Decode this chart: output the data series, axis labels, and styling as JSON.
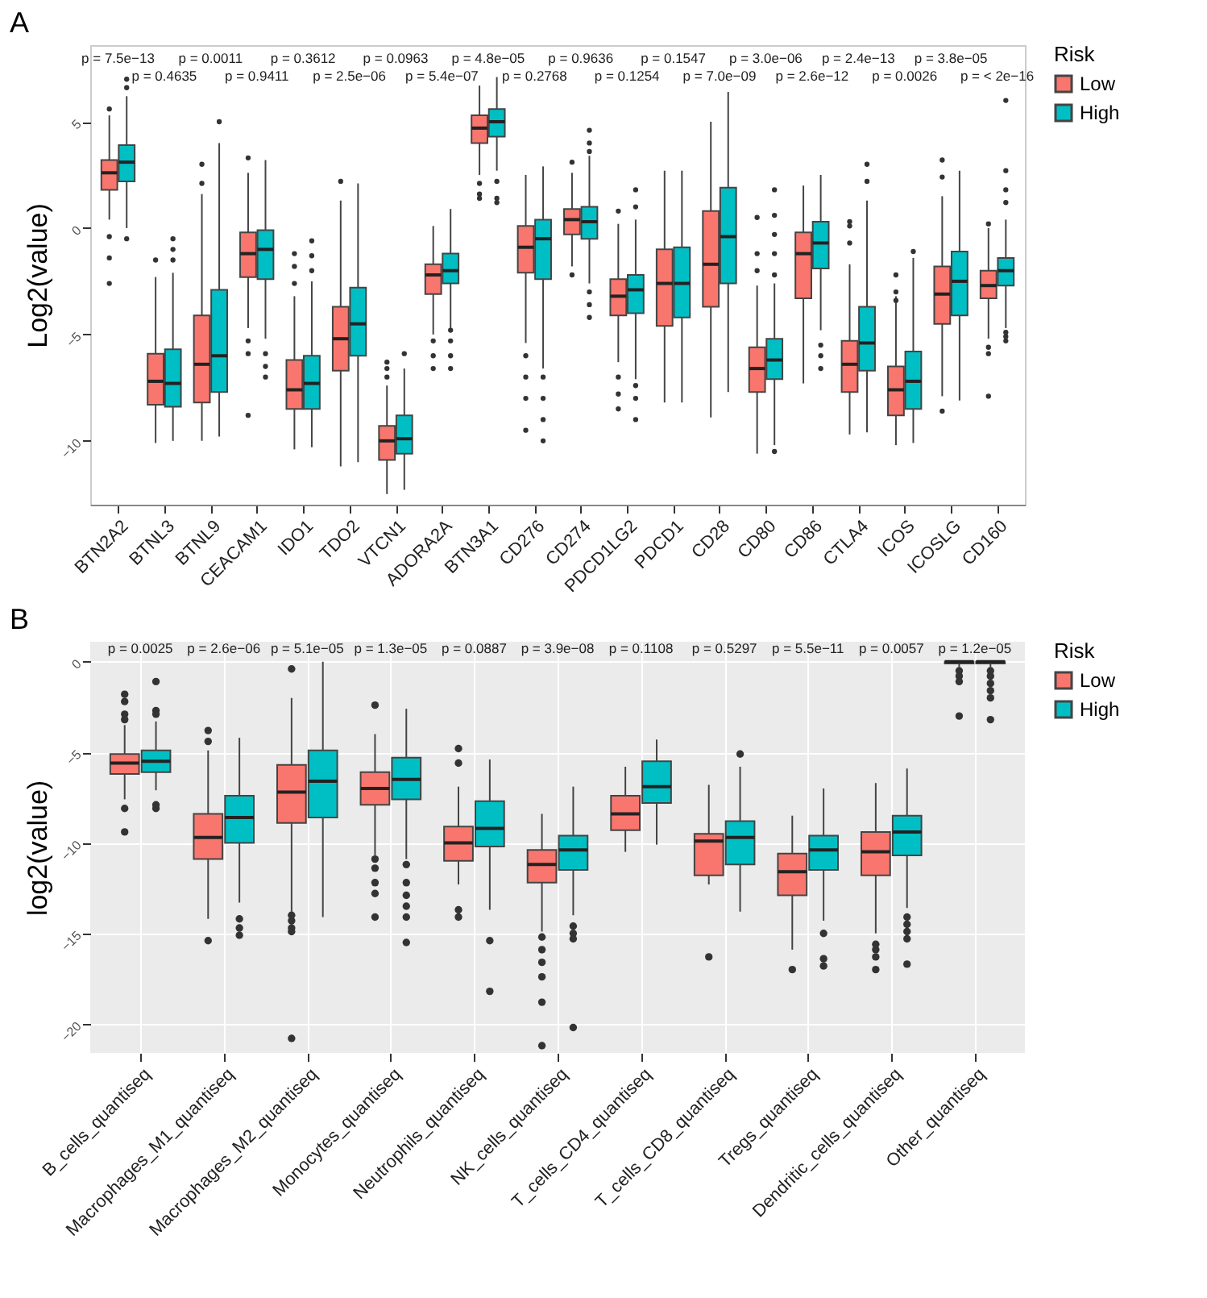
{
  "chart_data": [
    {
      "type": "box",
      "title": "A",
      "ylabel": "Log2(value)",
      "legend_title": "Risk",
      "legend": "right",
      "ylim": [
        -13,
        8.6
      ],
      "yticks": [
        5,
        0,
        -5,
        -10
      ],
      "categories": [
        "BTN2A2",
        "BTNL3",
        "BTNL9",
        "CEACAM1",
        "IDO1",
        "TDO2",
        "VTCN1",
        "ADORA2A",
        "BTN3A1",
        "CD276",
        "CD274",
        "PDCD1LG2",
        "PDCD1",
        "CD28",
        "CD80",
        "CD86",
        "CTLA4",
        "ICOS",
        "ICOSLG",
        "CD160"
      ],
      "annotations": [
        "p = 7.5e−13",
        "p = 0.4635",
        "p = 0.0011",
        "p = 0.9411",
        "p = 0.3612",
        "p = 2.5e−06",
        "p = 0.0963",
        "p = 5.4e−07",
        "p = 4.8e−05",
        "p = 0.2768",
        "p = 0.9636",
        "p = 0.1254",
        "p = 0.1547",
        "p = 7.0e−09",
        "p = 3.0e−06",
        "p = 2.6e−12",
        "p = 2.4e−13",
        "p = 0.0026",
        "p = 3.8e−05",
        "p = < 2e−16"
      ],
      "series": [
        {
          "name": "Low",
          "color": "#f8766d",
          "boxes": [
            {
              "low": 0.4,
              "q1": 1.8,
              "median": 2.6,
              "q3": 3.2,
              "high": 5.3,
              "outliers": [
                5.6,
                -0.4,
                -1.4,
                -2.6
              ]
            },
            {
              "low": -10.1,
              "q1": -8.3,
              "median": -7.2,
              "q3": -5.9,
              "high": -2.3,
              "outliers": [
                -1.5
              ]
            },
            {
              "low": -10,
              "q1": -8.2,
              "median": -6.4,
              "q3": -4.1,
              "high": 1.6,
              "outliers": [
                2.1,
                3
              ]
            },
            {
              "low": -4.7,
              "q1": -2.3,
              "median": -1.2,
              "q3": -0.2,
              "high": 2.6,
              "outliers": [
                3.3,
                -5.3,
                -5.9,
                -8.8
              ]
            },
            {
              "low": -10.4,
              "q1": -8.5,
              "median": -7.6,
              "q3": -6.2,
              "high": -3.2,
              "outliers": [
                -1.2,
                -1.8,
                -2.6
              ]
            },
            {
              "low": -11.2,
              "q1": -6.7,
              "median": -5.2,
              "q3": -3.7,
              "high": 1.3,
              "outliers": [
                2.2
              ]
            },
            {
              "low": -12.5,
              "q1": -10.9,
              "median": -10,
              "q3": -9.3,
              "high": -7.4,
              "outliers": [
                -6.3,
                -6.6,
                -7
              ]
            },
            {
              "low": -5,
              "q1": -3.1,
              "median": -2.2,
              "q3": -1.7,
              "high": 0.1,
              "outliers": [
                -5.3,
                -6,
                -6.6
              ]
            },
            {
              "low": 2.5,
              "q1": 4,
              "median": 4.7,
              "q3": 5.3,
              "high": 6.7,
              "outliers": [
                2.1,
                1.6,
                1.4
              ]
            },
            {
              "low": -5.4,
              "q1": -2.1,
              "median": -0.9,
              "q3": 0.1,
              "high": 2.5,
              "outliers": [
                -6,
                -7,
                -8,
                -9.5
              ]
            },
            {
              "low": -1.8,
              "q1": -0.3,
              "median": 0.4,
              "q3": 0.9,
              "high": 2.6,
              "outliers": [
                3.1,
                -2.2
              ]
            },
            {
              "low": -6.3,
              "q1": -4.1,
              "median": -3.2,
              "q3": -2.4,
              "high": 0.2,
              "outliers": [
                0.8,
                -7,
                -7.8,
                -8.5
              ]
            },
            {
              "low": -8.2,
              "q1": -4.6,
              "median": -2.6,
              "q3": -1,
              "high": 2.7
            },
            {
              "low": -8.9,
              "q1": -3.7,
              "median": -1.7,
              "q3": 0.8,
              "high": 5
            },
            {
              "low": -10.6,
              "q1": -7.7,
              "median": -6.6,
              "q3": -5.6,
              "high": -2.7,
              "outliers": [
                0.5,
                -1.2,
                -2
              ]
            },
            {
              "low": -7.3,
              "q1": -3.3,
              "median": -1.2,
              "q3": -0.2,
              "high": 2
            },
            {
              "low": -9.7,
              "q1": -7.7,
              "median": -6.4,
              "q3": -5.3,
              "high": -1.7,
              "outliers": [
                0.3,
                0.1,
                -0.7
              ]
            },
            {
              "low": -10.2,
              "q1": -8.8,
              "median": -7.6,
              "q3": -6.5,
              "high": -3.2,
              "outliers": [
                -2.2,
                -3,
                -3.4
              ]
            },
            {
              "low": -7.9,
              "q1": -4.5,
              "median": -3.1,
              "q3": -1.8,
              "high": 1.5,
              "outliers": [
                3.2,
                2.4,
                -8.6
              ]
            },
            {
              "low": -5.2,
              "q1": -3.3,
              "median": -2.7,
              "q3": -2,
              "high": 0,
              "outliers": [
                0.2,
                -5.6,
                -5.9,
                -7.9
              ]
            }
          ]
        },
        {
          "name": "High",
          "color": "#00bfc4",
          "boxes": [
            {
              "low": 0,
              "q1": 2.2,
              "median": 3.1,
              "q3": 3.9,
              "high": 6.2,
              "outliers": [
                6.6,
                7,
                -0.5
              ]
            },
            {
              "low": -10,
              "q1": -8.4,
              "median": -7.3,
              "q3": -5.7,
              "high": -2.1,
              "outliers": [
                -0.5,
                -1,
                -1.5
              ]
            },
            {
              "low": -9.8,
              "q1": -7.7,
              "median": -6,
              "q3": -2.9,
              "high": 4,
              "outliers": [
                5
              ]
            },
            {
              "low": -5.2,
              "q1": -2.4,
              "median": -1,
              "q3": -0.1,
              "high": 3.2,
              "outliers": [
                -5.9,
                -6.5,
                -7
              ]
            },
            {
              "low": -10.3,
              "q1": -8.5,
              "median": -7.3,
              "q3": -6,
              "high": -2.5,
              "outliers": [
                -0.6,
                -1.3,
                -2
              ]
            },
            {
              "low": -11,
              "q1": -6,
              "median": -4.5,
              "q3": -2.8,
              "high": 2.1
            },
            {
              "low": -12.3,
              "q1": -10.6,
              "median": -9.9,
              "q3": -8.8,
              "high": -6.6,
              "outliers": [
                -5.9
              ]
            },
            {
              "low": -4.7,
              "q1": -2.6,
              "median": -2,
              "q3": -1.2,
              "high": 0.9,
              "outliers": [
                -4.8,
                -5.3,
                -6,
                -6.6
              ]
            },
            {
              "low": 2.7,
              "q1": 4.3,
              "median": 5,
              "q3": 5.6,
              "high": 7.1,
              "outliers": [
                2.2,
                1.4,
                1.2
              ]
            },
            {
              "low": -6.6,
              "q1": -2.4,
              "median": -0.5,
              "q3": 0.4,
              "high": 2.9,
              "outliers": [
                -7,
                -8,
                -9,
                -10
              ]
            },
            {
              "low": -2.6,
              "q1": -0.5,
              "median": 0.3,
              "q3": 1,
              "high": 3.4,
              "outliers": [
                3.6,
                4,
                4.6,
                -3,
                -3.6,
                -4.2
              ]
            },
            {
              "low": -7.1,
              "q1": -4,
              "median": -2.9,
              "q3": -2.2,
              "high": 0.4,
              "outliers": [
                1,
                1.8,
                -7.4,
                -8,
                -9
              ]
            },
            {
              "low": -8.2,
              "q1": -4.2,
              "median": -2.6,
              "q3": -0.9,
              "high": 2.7
            },
            {
              "low": -7.7,
              "q1": -2.6,
              "median": -0.4,
              "q3": 1.9,
              "high": 6.4
            },
            {
              "low": -10.2,
              "q1": -7.1,
              "median": -6.2,
              "q3": -5.2,
              "high": -2.6,
              "outliers": [
                1.8,
                0.6,
                -0.3,
                -1.2,
                -2.2,
                -10.5
              ]
            },
            {
              "low": -4.8,
              "q1": -1.9,
              "median": -0.7,
              "q3": 0.3,
              "high": 2.5,
              "outliers": [
                -5.5,
                -6,
                -6.6
              ]
            },
            {
              "low": -9.6,
              "q1": -6.7,
              "median": -5.4,
              "q3": -3.7,
              "high": 1.3,
              "outliers": [
                2.2,
                3
              ]
            },
            {
              "low": -10.1,
              "q1": -8.5,
              "median": -7.2,
              "q3": -5.8,
              "high": -1.4,
              "outliers": [
                -1.1
              ]
            },
            {
              "low": -8.1,
              "q1": -4.1,
              "median": -2.5,
              "q3": -1.1,
              "high": 2.7
            },
            {
              "low": -4.7,
              "q1": -2.7,
              "median": -2,
              "q3": -1.4,
              "high": 0.4,
              "outliers": [
                6,
                2.7,
                1.8,
                1.2,
                -4.9,
                -5.1,
                -5.3
              ]
            }
          ]
        }
      ]
    },
    {
      "type": "box",
      "title": "B",
      "ylabel": "log2(value)",
      "legend_title": "Risk",
      "legend": "right",
      "grid": true,
      "ylim": [
        -21.6,
        1.1
      ],
      "yticks": [
        0,
        -5,
        -10,
        -15,
        -20
      ],
      "categories": [
        "B_cells_quantiseq",
        "Macrophages_M1_quantiseq",
        "Macrophages_M2_quantiseq",
        "Monocytes_quantiseq",
        "Neutrophils_quantiseq",
        "NK_cells_quantiseq",
        "T_cells_CD4_quantiseq",
        "T_cells_CD8_quantiseq",
        "Tregs_quantiseq",
        "Dendritic_cells_quantiseq",
        "Other_quantiseq"
      ],
      "annotations": [
        "p = 0.0025",
        "p = 2.6e−06",
        "p = 5.1e−05",
        "p = 1.3e−05",
        "p = 0.0887",
        "p = 3.9e−08",
        "p = 0.1108",
        "p = 0.5297",
        "p = 5.5e−11",
        "p = 0.0057",
        "p = 1.2e−05"
      ],
      "series": [
        {
          "name": "Low",
          "color": "#f8766d",
          "boxes": [
            {
              "low": -7.6,
              "q1": -6.2,
              "median": -5.6,
              "q3": -5.1,
              "high": -3.5,
              "outliers": [
                -1.8,
                -2.2,
                -2.9,
                -3.2,
                -8.1,
                -9.4
              ]
            },
            {
              "low": -14.2,
              "q1": -10.9,
              "median": -9.7,
              "q3": -8.4,
              "high": -4.9,
              "outliers": [
                -3.8,
                -4.4,
                -15.4
              ]
            },
            {
              "low": -13.8,
              "q1": -8.9,
              "median": -7.2,
              "q3": -5.7,
              "high": -2,
              "outliers": [
                -0.4,
                -14,
                -14.3,
                -14.7,
                -14.9,
                -20.8
              ]
            },
            {
              "low": -10.7,
              "q1": -7.9,
              "median": -7,
              "q3": -6.1,
              "high": -4,
              "outliers": [
                -2.4,
                -10.9,
                -11.4,
                -12.2,
                -12.8,
                -14.1
              ]
            },
            {
              "low": -12.3,
              "q1": -11,
              "median": -10,
              "q3": -9.1,
              "high": -6.9,
              "outliers": [
                -4.8,
                -5.6,
                -13.7,
                -14.1
              ]
            },
            {
              "low": -14.9,
              "q1": -12.2,
              "median": -11.2,
              "q3": -10.4,
              "high": -8.4,
              "outliers": [
                -15.2,
                -15.9,
                -16.6,
                -17.4,
                -18.8,
                -21.2
              ]
            },
            {
              "low": -10.5,
              "q1": -9.3,
              "median": -8.4,
              "q3": -7.4,
              "high": -5.8
            },
            {
              "low": -12.3,
              "q1": -11.8,
              "median": -9.9,
              "q3": -9.5,
              "high": -6.8,
              "outliers": [
                -16.3
              ]
            },
            {
              "low": -15.9,
              "q1": -12.9,
              "median": -11.6,
              "q3": -10.6,
              "high": -8.5,
              "outliers": [
                -17
              ]
            },
            {
              "low": -15,
              "q1": -11.8,
              "median": -10.5,
              "q3": -9.4,
              "high": -6.7,
              "outliers": [
                -15.6,
                -15.9,
                -16.3,
                -17
              ]
            },
            {
              "low": -0.3,
              "q1": -0.1,
              "median": 0,
              "q3": 0,
              "high": 0,
              "outliers": [
                -0.5,
                -0.8,
                -1.1,
                -3
              ]
            }
          ]
        },
        {
          "name": "High",
          "color": "#00bfc4",
          "boxes": [
            {
              "low": -7.1,
              "q1": -6.1,
              "median": -5.5,
              "q3": -4.9,
              "high": -3.3,
              "outliers": [
                -1.1,
                -2.7,
                -2.9,
                -7.9,
                -8.1
              ]
            },
            {
              "low": -13.3,
              "q1": -10,
              "median": -8.6,
              "q3": -7.4,
              "high": -4.2,
              "outliers": [
                -14.2,
                -14.7,
                -15.1
              ]
            },
            {
              "low": -14.1,
              "q1": -8.6,
              "median": -6.6,
              "q3": -4.9,
              "high": 0
            },
            {
              "low": -10.9,
              "q1": -7.6,
              "median": -6.5,
              "q3": -5.3,
              "high": -2.6,
              "outliers": [
                -11.2,
                -12.2,
                -12.9,
                -13.5,
                -14.1,
                -15.5
              ]
            },
            {
              "low": -13.7,
              "q1": -10.2,
              "median": -9.2,
              "q3": -7.7,
              "high": -5.4,
              "outliers": [
                -15.4,
                -18.2
              ]
            },
            {
              "low": -14,
              "q1": -11.5,
              "median": -10.4,
              "q3": -9.6,
              "high": -6.9,
              "outliers": [
                -14.6,
                -15,
                -15.3,
                -20.2
              ]
            },
            {
              "low": -10.1,
              "q1": -7.8,
              "median": -6.9,
              "q3": -5.5,
              "high": -4.3
            },
            {
              "low": -13.8,
              "q1": -11.2,
              "median": -9.7,
              "q3": -8.8,
              "high": -5.8,
              "outliers": [
                -5.1
              ]
            },
            {
              "low": -14.3,
              "q1": -11.5,
              "median": -10.4,
              "q3": -9.6,
              "high": -7,
              "outliers": [
                -15,
                -16.4,
                -16.8
              ]
            },
            {
              "low": -13.6,
              "q1": -10.7,
              "median": -9.4,
              "q3": -8.5,
              "high": -5.9,
              "outliers": [
                -14.1,
                -14.5,
                -14.9,
                -15.3,
                -16.7
              ]
            },
            {
              "low": -0.3,
              "q1": -0.1,
              "median": 0,
              "q3": 0,
              "high": 0,
              "outliers": [
                -0.5,
                -0.8,
                -1.2,
                -1.6,
                -2,
                -3.2
              ]
            }
          ]
        }
      ]
    }
  ]
}
